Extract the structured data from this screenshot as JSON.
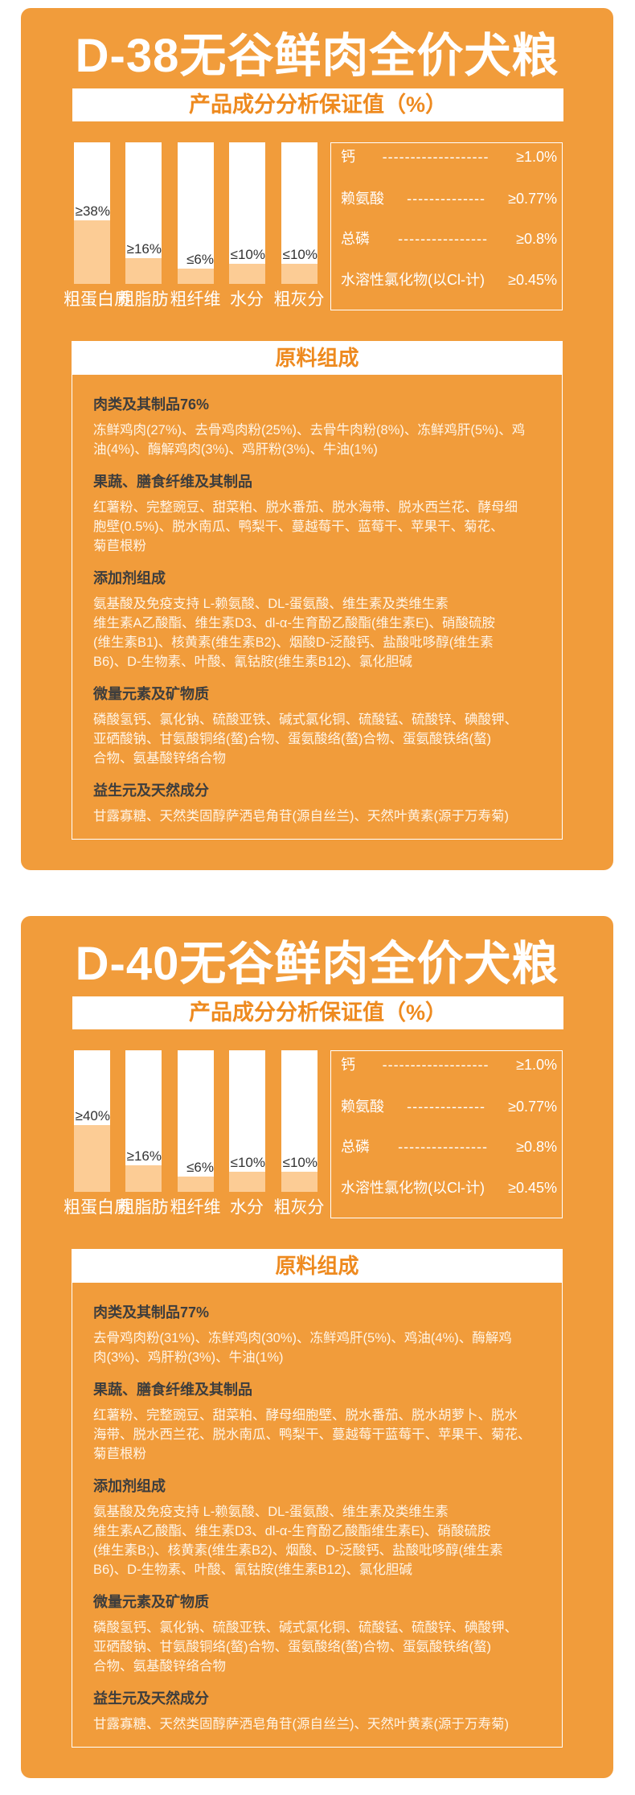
{
  "colors": {
    "card": "#F19C3B",
    "bar_fill": "#FCCC95",
    "accent_text": "#EE8A1F",
    "heading_text": "#3d3d3d"
  },
  "products": [
    {
      "title": "D-38无谷鲜肉全价犬粮",
      "analysis_title": "产品成分分析保证值（%）",
      "bars": [
        {
          "label": "粗蛋白质",
          "value": "≥38%",
          "fill_percent": 45
        },
        {
          "label": "粗脂肪",
          "value": "≥16%",
          "fill_percent": 18
        },
        {
          "label": "粗纤维",
          "value": "≤6%",
          "fill_percent": 11
        },
        {
          "label": "水分",
          "value": "≤10%",
          "fill_percent": 14
        },
        {
          "label": "粗灰分",
          "value": "≤10%",
          "fill_percent": 14
        }
      ],
      "nutrients": [
        {
          "name": "钙",
          "dash": "-------------------",
          "value": "≥1.0%"
        },
        {
          "name": "赖氨酸",
          "dash": "--------------",
          "value": "≥0.77%"
        },
        {
          "name": "总磷",
          "dash": "----------------",
          "value": "≥0.8%"
        },
        {
          "name": "水溶性氯化物(以Cl-计)",
          "dash": "",
          "value": "≥0.45%"
        }
      ],
      "ingredients_title": "原料组成",
      "sections": [
        {
          "heading": "肉类及其制品76%",
          "lines": [
            "冻鲜鸡肉(27%)、去骨鸡肉粉(25%)、去骨牛肉粉(8%)、冻鲜鸡肝(5%)、鸡",
            "油(4%)、酶解鸡肉(3%)、鸡肝粉(3%)、牛油(1%)"
          ]
        },
        {
          "heading": "果蔬、膳食纤维及其制品",
          "lines": [
            "红薯粉、完整豌豆、甜菜粕、脱水番茄、脱水海带、脱水西兰花、酵母细",
            "胞壁(0.5%)、脱水南瓜、鸭梨干、蔓越莓干、蓝莓干、苹果干、菊花、",
            "菊苣根粉"
          ]
        },
        {
          "heading": "添加剂组成",
          "lines": [
            "氨基酸及免疫支持 L-赖氨酸、DL-蛋氨酸、维生素及类维生素",
            "维生素A乙酸酯、维生素D3、dl-α-生育酚乙酸酯(维生素E)、硝酸硫胺",
            "(维生素B1)、核黄素(维生素B2)、烟酸D-泛酸钙、盐酸吡哆醇(维生素",
            "B6)、D-生物素、叶酸、氰钴胺(维生素B12)、氯化胆碱"
          ]
        },
        {
          "heading": "微量元素及矿物质",
          "lines": [
            "磷酸氢钙、氯化钠、硫酸亚铁、碱式氯化铜、硫酸锰、硫酸锌、碘酸钾、",
            "亚硒酸钠、甘氨酸铜络(螯)合物、蛋氨酸络(螯)合物、蛋氨酸铁络(螯)",
            "合物、氨基酸锌络合物"
          ]
        },
        {
          "heading": "益生元及天然成分",
          "lines": [
            "甘露寡糖、天然类固醇萨洒皂角苷(源自丝兰)、天然叶黄素(源于万寿菊)"
          ]
        }
      ]
    },
    {
      "title": "D-40无谷鲜肉全价犬粮",
      "analysis_title": "产品成分分析保证值（%）",
      "bars": [
        {
          "label": "粗蛋白质",
          "value": "≥40%",
          "fill_percent": 47
        },
        {
          "label": "粗脂肪",
          "value": "≥16%",
          "fill_percent": 19
        },
        {
          "label": "粗纤维",
          "value": "≤6%",
          "fill_percent": 11
        },
        {
          "label": "水分",
          "value": "≤10%",
          "fill_percent": 14
        },
        {
          "label": "粗灰分",
          "value": "≤10%",
          "fill_percent": 14
        }
      ],
      "nutrients": [
        {
          "name": "钙",
          "dash": "-------------------",
          "value": "≥1.0%"
        },
        {
          "name": "赖氨酸",
          "dash": "--------------",
          "value": "≥0.77%"
        },
        {
          "name": "总磷",
          "dash": "----------------",
          "value": "≥0.8%"
        },
        {
          "name": "水溶性氯化物(以Cl-计)",
          "dash": "",
          "value": "≥0.45%"
        }
      ],
      "ingredients_title": "原料组成",
      "sections": [
        {
          "heading": "肉类及其制品77%",
          "lines": [
            "去骨鸡肉粉(31%)、冻鲜鸡肉(30%)、冻鲜鸡肝(5%)、鸡油(4%)、酶解鸡",
            "肉(3%)、鸡肝粉(3%)、牛油(1%)"
          ]
        },
        {
          "heading": "果蔬、膳食纤维及其制品",
          "lines": [
            "红薯粉、完整豌豆、甜菜粕、酵母细胞壁、脱水番茄、脱水胡萝卜、脱水",
            "海带、脱水西兰花、脱水南瓜、鸭梨干、蔓越莓干蓝莓干、苹果干、菊花、",
            "菊苣根粉"
          ]
        },
        {
          "heading": "添加剂组成",
          "lines": [
            "氨基酸及免疫支持 L-赖氨酸、DL-蛋氨酸、维生素及类维生素",
            "维生素A乙酸酯、维生素D3、dl-α-生育酚乙酸酯维生素E)、硝酸硫胺",
            "(维生素B;)、核黄素(维生素B2)、烟酸、D-泛酸钙、盐酸吡哆醇(维生素",
            "B6)、D-生物素、叶酸、氰钴胺(维生素B12)、氯化胆碱"
          ]
        },
        {
          "heading": "微量元素及矿物质",
          "lines": [
            "磷酸氢钙、氯化钠、硫酸亚铁、碱式氯化铜、硫酸锰、硫酸锌、碘酸钾、",
            "亚硒酸钠、甘氨酸铜络(螯)合物、蛋氨酸络(螯)合物、蛋氨酸铁络(螯)",
            "合物、氨基酸锌络合物"
          ]
        },
        {
          "heading": "益生元及天然成分",
          "lines": [
            "甘露寡糖、天然类固醇萨洒皂角苷(源自丝兰)、天然叶黄素(源于万寿菊)"
          ]
        }
      ]
    }
  ]
}
